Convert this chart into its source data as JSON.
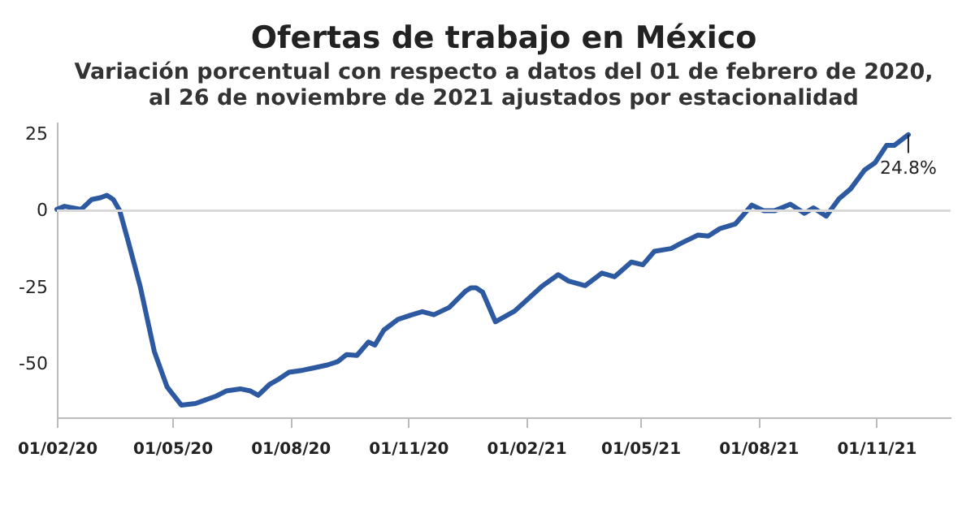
{
  "chart_data": {
    "type": "line",
    "title": "Ofertas de trabajo en México",
    "subtitle": "Variación porcentual con respecto a datos del 01 de febrero de 2020,\nal 26 de noviembre de 2021 ajustados por estacionalidad",
    "x": [
      "2020-02-01",
      "2020-02-07",
      "2020-02-20",
      "2020-02-28",
      "2020-03-06",
      "2020-03-11",
      "2020-03-16",
      "2020-03-21",
      "2020-03-28",
      "2020-04-06",
      "2020-04-17",
      "2020-04-27",
      "2020-05-08",
      "2020-05-19",
      "2020-06-04",
      "2020-06-12",
      "2020-06-23",
      "2020-07-01",
      "2020-07-07",
      "2020-07-16",
      "2020-07-22",
      "2020-07-31",
      "2020-08-11",
      "2020-08-19",
      "2020-08-30",
      "2020-09-07",
      "2020-09-14",
      "2020-09-22",
      "2020-10-01",
      "2020-10-06",
      "2020-10-13",
      "2020-10-24",
      "2020-11-04",
      "2020-11-12",
      "2020-11-21",
      "2020-12-03",
      "2020-12-16",
      "2020-12-20",
      "2020-12-24",
      "2020-12-29",
      "2021-01-08",
      "2021-01-23",
      "2021-02-13",
      "2021-02-26",
      "2021-03-06",
      "2021-03-19",
      "2021-04-01",
      "2021-04-11",
      "2021-04-24",
      "2021-05-03",
      "2021-05-12",
      "2021-05-25",
      "2021-06-02",
      "2021-06-15",
      "2021-06-23",
      "2021-07-02",
      "2021-07-14",
      "2021-07-27",
      "2021-08-05",
      "2021-08-14",
      "2021-08-26",
      "2021-09-06",
      "2021-09-13",
      "2021-09-23",
      "2021-10-03",
      "2021-10-12",
      "2021-10-23",
      "2021-10-31",
      "2021-11-09",
      "2021-11-15",
      "2021-11-26"
    ],
    "series": [
      {
        "color": "#2d59a1",
        "values": [
          0.4,
          1.4,
          0.4,
          3.6,
          4.2,
          5.0,
          3.6,
          0,
          -10.6,
          -24.8,
          -46,
          -57.6,
          -63.5,
          -63,
          -60.6,
          -58.9,
          -58.2,
          -58.9,
          -60.3,
          -56.7,
          -55.3,
          -52.8,
          -52.1,
          -51.4,
          -50.4,
          -49.3,
          -47,
          -47.3,
          -42.9,
          -43.9,
          -39,
          -35.5,
          -34,
          -33,
          -34,
          -31.6,
          -26.2,
          -25.2,
          -25.2,
          -26.6,
          -36.3,
          -32.8,
          -24.8,
          -20.9,
          -23,
          -24.5,
          -20.4,
          -21.6,
          -16.8,
          -17.7,
          -13.3,
          -12.4,
          -10.6,
          -8,
          -8.3,
          -5.9,
          -4.4,
          1.8,
          0,
          0,
          2.1,
          -0.9,
          0.9,
          -1.8,
          3.9,
          7.1,
          13.3,
          15.6,
          21.3,
          21.3,
          24.8
        ]
      }
    ],
    "xlim": [
      "2020-02-01",
      "2021-12-29"
    ],
    "xticks": [
      {
        "value": "2020-02-01",
        "label": "01/02/20"
      },
      {
        "value": "2020-05-01",
        "label": "01/05/20"
      },
      {
        "value": "2020-08-01",
        "label": "01/08/20"
      },
      {
        "value": "2020-11-01",
        "label": "01/11/20"
      },
      {
        "value": "2021-02-01",
        "label": "01/02/21"
      },
      {
        "value": "2021-05-01",
        "label": "01/05/21"
      },
      {
        "value": "2021-08-01",
        "label": "01/08/21"
      },
      {
        "value": "2021-11-01",
        "label": "01/11/21"
      }
    ],
    "ylim": [
      -67.5,
      29
    ],
    "yticks": [
      25,
      0,
      -25,
      -50
    ],
    "grid": false,
    "marker": "none",
    "line_style": "solid",
    "ref_lines": [
      {
        "axis": "y",
        "value": 0,
        "color": "#d9d9d9"
      }
    ],
    "annotations": [
      {
        "text": "24.8%",
        "x": "2021-11-26",
        "y": 24.8
      }
    ]
  }
}
